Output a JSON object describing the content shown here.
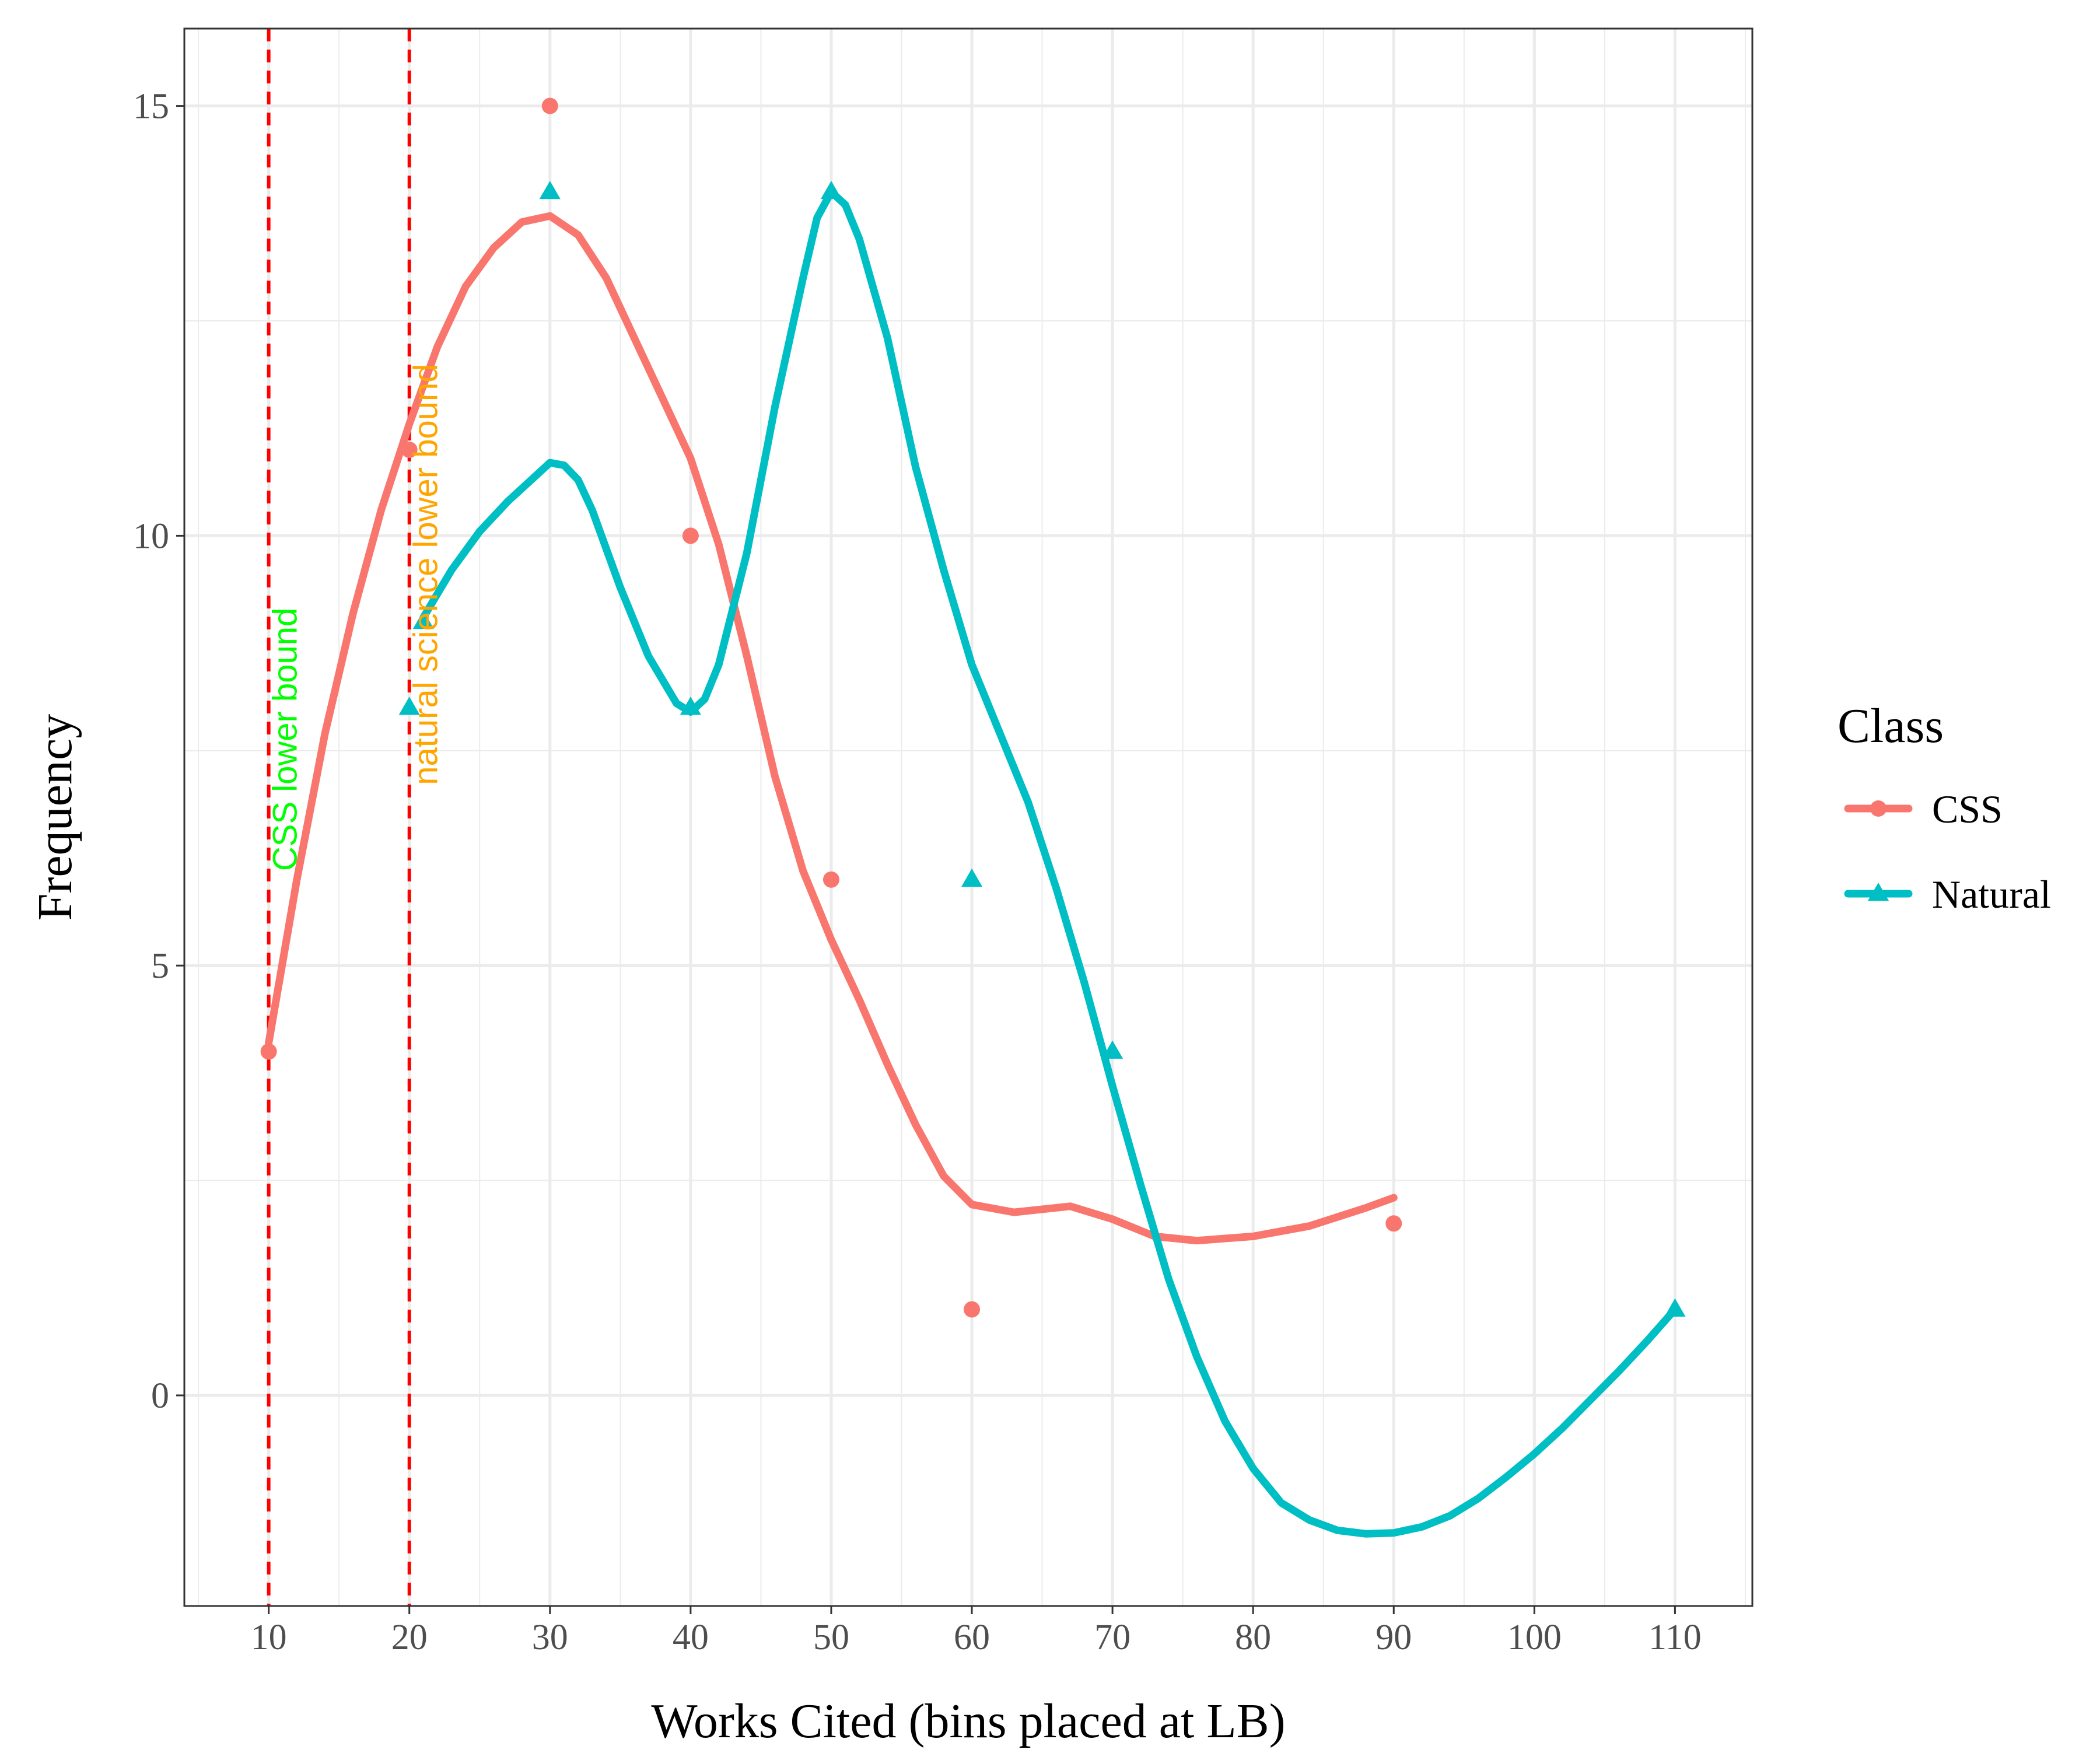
{
  "chart_data": {
    "type": "line",
    "title": "",
    "xlabel": "Works Cited (bins placed at LB)",
    "ylabel": "Frequency",
    "xlim": [
      4,
      115.5
    ],
    "ylim": [
      -2.45,
      15.9
    ],
    "x_ticks": [
      10,
      20,
      30,
      40,
      50,
      60,
      70,
      80,
      90,
      100,
      110
    ],
    "y_ticks": [
      0,
      5,
      10,
      15
    ],
    "grid": true,
    "legend": {
      "title": "Class",
      "placement": "right",
      "entries": [
        {
          "label": "CSS",
          "color": "#F8766D",
          "marker": "circle"
        },
        {
          "label": "Natural",
          "color": "#00BFC4",
          "marker": "triangle"
        }
      ]
    },
    "series": [
      {
        "name": "CSS",
        "color": "#F8766D",
        "marker": "circle",
        "points": [
          {
            "x": 10,
            "y": 4
          },
          {
            "x": 20,
            "y": 11
          },
          {
            "x": 30,
            "y": 15
          },
          {
            "x": 40,
            "y": 10
          },
          {
            "x": 50,
            "y": 6
          },
          {
            "x": 60,
            "y": 1
          },
          {
            "x": 90,
            "y": 2
          }
        ],
        "smooth": [
          {
            "x": 10,
            "y": 4.1
          },
          {
            "x": 12,
            "y": 6.0
          },
          {
            "x": 14,
            "y": 7.7
          },
          {
            "x": 16,
            "y": 9.1
          },
          {
            "x": 18,
            "y": 10.3
          },
          {
            "x": 20,
            "y": 11.3
          },
          {
            "x": 22,
            "y": 12.2
          },
          {
            "x": 24,
            "y": 12.9
          },
          {
            "x": 26,
            "y": 13.35
          },
          {
            "x": 28,
            "y": 13.65
          },
          {
            "x": 30,
            "y": 13.72
          },
          {
            "x": 32,
            "y": 13.5
          },
          {
            "x": 34,
            "y": 13.0
          },
          {
            "x": 36,
            "y": 12.3
          },
          {
            "x": 38,
            "y": 11.6
          },
          {
            "x": 40,
            "y": 10.9
          },
          {
            "x": 42,
            "y": 9.9
          },
          {
            "x": 44,
            "y": 8.6
          },
          {
            "x": 46,
            "y": 7.2
          },
          {
            "x": 48,
            "y": 6.1
          },
          {
            "x": 50,
            "y": 5.3
          },
          {
            "x": 52,
            "y": 4.6
          },
          {
            "x": 54,
            "y": 3.85
          },
          {
            "x": 56,
            "y": 3.15
          },
          {
            "x": 58,
            "y": 2.55
          },
          {
            "x": 60,
            "y": 2.22
          },
          {
            "x": 63,
            "y": 2.13
          },
          {
            "x": 67,
            "y": 2.2
          },
          {
            "x": 70,
            "y": 2.05
          },
          {
            "x": 73,
            "y": 1.85
          },
          {
            "x": 76,
            "y": 1.8
          },
          {
            "x": 80,
            "y": 1.85
          },
          {
            "x": 84,
            "y": 1.97
          },
          {
            "x": 88,
            "y": 2.18
          },
          {
            "x": 90,
            "y": 2.3
          }
        ]
      },
      {
        "name": "Natural",
        "color": "#00BFC4",
        "marker": "triangle",
        "points": [
          {
            "x": 20,
            "y": 8
          },
          {
            "x": 21,
            "y": 9
          },
          {
            "x": 30,
            "y": 14
          },
          {
            "x": 40,
            "y": 8
          },
          {
            "x": 50,
            "y": 14
          },
          {
            "x": 60,
            "y": 6
          },
          {
            "x": 70,
            "y": 4
          },
          {
            "x": 110,
            "y": 1
          }
        ],
        "smooth": [
          {
            "x": 21,
            "y": 9.05
          },
          {
            "x": 23,
            "y": 9.6
          },
          {
            "x": 25,
            "y": 10.05
          },
          {
            "x": 27,
            "y": 10.4
          },
          {
            "x": 29,
            "y": 10.7
          },
          {
            "x": 30,
            "y": 10.85
          },
          {
            "x": 31,
            "y": 10.82
          },
          {
            "x": 32,
            "y": 10.65
          },
          {
            "x": 33,
            "y": 10.3
          },
          {
            "x": 35,
            "y": 9.4
          },
          {
            "x": 37,
            "y": 8.6
          },
          {
            "x": 39,
            "y": 8.05
          },
          {
            "x": 40,
            "y": 7.95
          },
          {
            "x": 41,
            "y": 8.1
          },
          {
            "x": 42,
            "y": 8.5
          },
          {
            "x": 44,
            "y": 9.8
          },
          {
            "x": 46,
            "y": 11.5
          },
          {
            "x": 48,
            "y": 13.0
          },
          {
            "x": 49,
            "y": 13.7
          },
          {
            "x": 50,
            "y": 14.0
          },
          {
            "x": 51,
            "y": 13.85
          },
          {
            "x": 52,
            "y": 13.45
          },
          {
            "x": 54,
            "y": 12.3
          },
          {
            "x": 56,
            "y": 10.8
          },
          {
            "x": 58,
            "y": 9.6
          },
          {
            "x": 60,
            "y": 8.5
          },
          {
            "x": 62,
            "y": 7.7
          },
          {
            "x": 64,
            "y": 6.9
          },
          {
            "x": 66,
            "y": 5.9
          },
          {
            "x": 68,
            "y": 4.8
          },
          {
            "x": 70,
            "y": 3.6
          },
          {
            "x": 72,
            "y": 2.45
          },
          {
            "x": 74,
            "y": 1.35
          },
          {
            "x": 76,
            "y": 0.45
          },
          {
            "x": 78,
            "y": -0.3
          },
          {
            "x": 80,
            "y": -0.85
          },
          {
            "x": 82,
            "y": -1.25
          },
          {
            "x": 84,
            "y": -1.45
          },
          {
            "x": 86,
            "y": -1.57
          },
          {
            "x": 88,
            "y": -1.61
          },
          {
            "x": 90,
            "y": -1.6
          },
          {
            "x": 92,
            "y": -1.53
          },
          {
            "x": 94,
            "y": -1.4
          },
          {
            "x": 96,
            "y": -1.2
          },
          {
            "x": 98,
            "y": -0.95
          },
          {
            "x": 100,
            "y": -0.68
          },
          {
            "x": 102,
            "y": -0.38
          },
          {
            "x": 104,
            "y": -0.05
          },
          {
            "x": 106,
            "y": 0.28
          },
          {
            "x": 108,
            "y": 0.63
          },
          {
            "x": 110,
            "y": 1.0
          }
        ]
      }
    ],
    "vlines": [
      {
        "x": 10,
        "color": "#FF0000",
        "style": "dashed",
        "label": "CSS lower bound",
        "label_color": "#00FF00"
      },
      {
        "x": 20,
        "color": "#FF0000",
        "style": "dashed",
        "label": "natural science lower bound",
        "label_color": "#FFA500"
      }
    ],
    "panel_background": "#FFFFFF",
    "grid_color": "#EBEBEB",
    "border_color": "#333333"
  }
}
